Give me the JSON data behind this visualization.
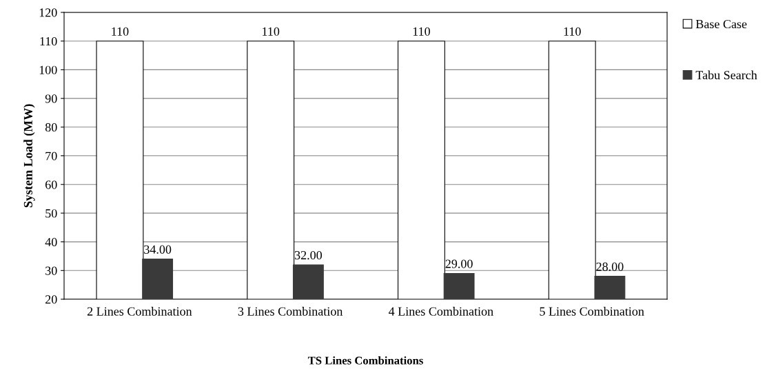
{
  "chart_data": {
    "type": "bar",
    "xlabel": "TS Lines Combinations",
    "ylabel": "System Load (MW)",
    "categories": [
      "2 Lines Combination",
      "3 Lines Combination",
      "4 Lines Combination",
      "5 Lines Combination"
    ],
    "series": [
      {
        "name": "Base Case",
        "color": "#ffffff",
        "values": [
          110,
          110,
          110,
          110
        ],
        "value_labels": [
          "110",
          "110",
          "110",
          "110"
        ]
      },
      {
        "name": "Tabu Search",
        "color": "#3a3a3a",
        "values": [
          34,
          32,
          29,
          28
        ],
        "value_labels": [
          "34.00",
          "32.00",
          "29.00",
          "28.00"
        ]
      }
    ],
    "ylim": [
      20,
      120
    ],
    "yticks": [
      20,
      30,
      40,
      50,
      60,
      70,
      80,
      90,
      100,
      110,
      120
    ],
    "grid": "y",
    "legend": "right"
  }
}
